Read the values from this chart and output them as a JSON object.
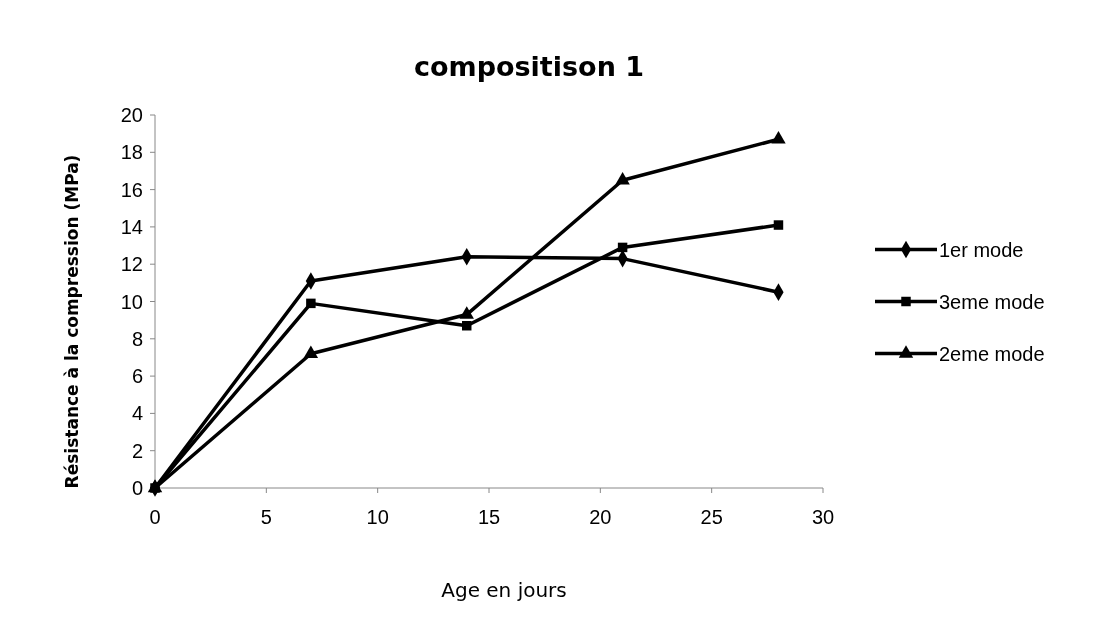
{
  "chart_data": {
    "type": "line",
    "title": "compositison 1",
    "xlabel": "Age en jours",
    "ylabel": "Résistance à la compression  (MPa)",
    "x": [
      0,
      7,
      14,
      21,
      28
    ],
    "series": [
      {
        "name": "1er mode",
        "color": "#000000",
        "marker": "diamond",
        "values": [
          0,
          11.1,
          12.4,
          12.3,
          10.5
        ]
      },
      {
        "name": "3eme mode",
        "color": "#000000",
        "marker": "square",
        "values": [
          0,
          9.9,
          8.7,
          12.9,
          14.1
        ]
      },
      {
        "name": "2eme mode",
        "color": "#000000",
        "marker": "triangle",
        "values": [
          0,
          7.2,
          9.3,
          16.5,
          18.7
        ]
      }
    ],
    "xlim": [
      0,
      30
    ],
    "xticks": [
      0,
      5,
      10,
      15,
      20,
      25,
      30
    ],
    "ylim": [
      0,
      20
    ],
    "yticks": [
      0,
      2,
      4,
      6,
      8,
      10,
      12,
      14,
      16,
      18,
      20
    ],
    "grid": false,
    "legend": "right",
    "line_style": "solid"
  }
}
